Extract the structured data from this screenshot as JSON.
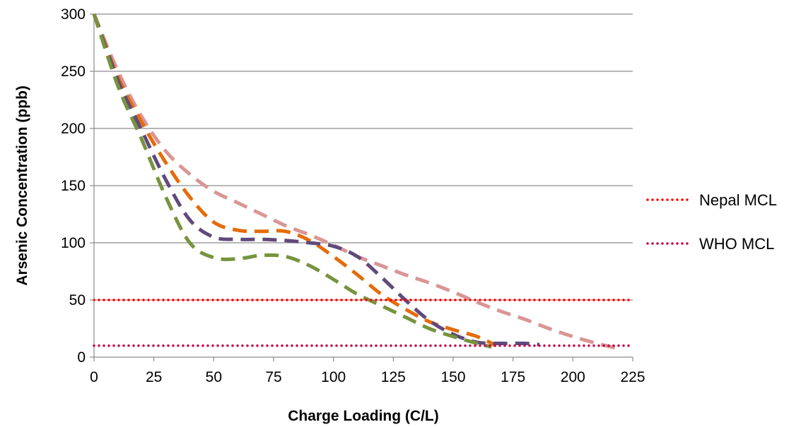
{
  "chart_data": {
    "type": "line",
    "title": "",
    "xlabel": "Charge Loading (C/L)",
    "ylabel": "Arsenic Concentration (ppb)",
    "xlim": [
      0,
      225
    ],
    "ylim": [
      0,
      300
    ],
    "x_ticks": [
      0,
      25,
      50,
      75,
      100,
      125,
      150,
      175,
      200,
      225
    ],
    "y_ticks": [
      0,
      50,
      100,
      150,
      200,
      250,
      300
    ],
    "grid": "horizontal",
    "legend_position": "right",
    "series": [
      {
        "color": "#D99694",
        "style": "dashed",
        "x": [
          0,
          10,
          20,
          30,
          40,
          50,
          60,
          70,
          80,
          90,
          100,
          110,
          120,
          130,
          140,
          150,
          160,
          170,
          180,
          190,
          200,
          210,
          220
        ],
        "y": [
          300,
          250,
          210,
          180,
          160,
          145,
          135,
          125,
          115,
          107,
          98,
          88,
          80,
          72,
          65,
          57,
          48,
          40,
          33,
          25,
          18,
          12,
          7
        ]
      },
      {
        "color": "#E46C0A",
        "style": "dashed",
        "x": [
          0,
          10,
          20,
          30,
          40,
          50,
          60,
          70,
          80,
          90,
          100,
          110,
          120,
          130,
          140,
          150,
          160,
          168
        ],
        "y": [
          300,
          245,
          205,
          170,
          140,
          118,
          111,
          110,
          110,
          102,
          88,
          72,
          55,
          42,
          31,
          24,
          18,
          10
        ]
      },
      {
        "color": "#604A7B",
        "style": "dashed",
        "x": [
          0,
          10,
          20,
          30,
          40,
          50,
          60,
          70,
          80,
          90,
          100,
          110,
          120,
          130,
          140,
          150,
          160,
          170,
          180,
          186
        ],
        "y": [
          300,
          242,
          198,
          155,
          120,
          105,
          103,
          103,
          102,
          100,
          97,
          88,
          70,
          50,
          32,
          20,
          13,
          12,
          12,
          11
        ]
      },
      {
        "color": "#77933C",
        "style": "dashed",
        "x": [
          0,
          10,
          20,
          30,
          40,
          50,
          60,
          70,
          80,
          90,
          100,
          110,
          120,
          130,
          140,
          150,
          160,
          166
        ],
        "y": [
          300,
          237,
          190,
          140,
          100,
          87,
          86,
          89,
          88,
          80,
          68,
          55,
          45,
          35,
          25,
          18,
          12,
          9
        ]
      },
      {
        "name": "Nepal MCL",
        "color": "#FF0000",
        "style": "dotted",
        "x": [
          0,
          225
        ],
        "y": [
          50,
          50
        ]
      },
      {
        "name": "WHO MCL",
        "color": "#C0004A",
        "style": "dotted",
        "x": [
          0,
          225
        ],
        "y": [
          10,
          10
        ]
      }
    ]
  }
}
